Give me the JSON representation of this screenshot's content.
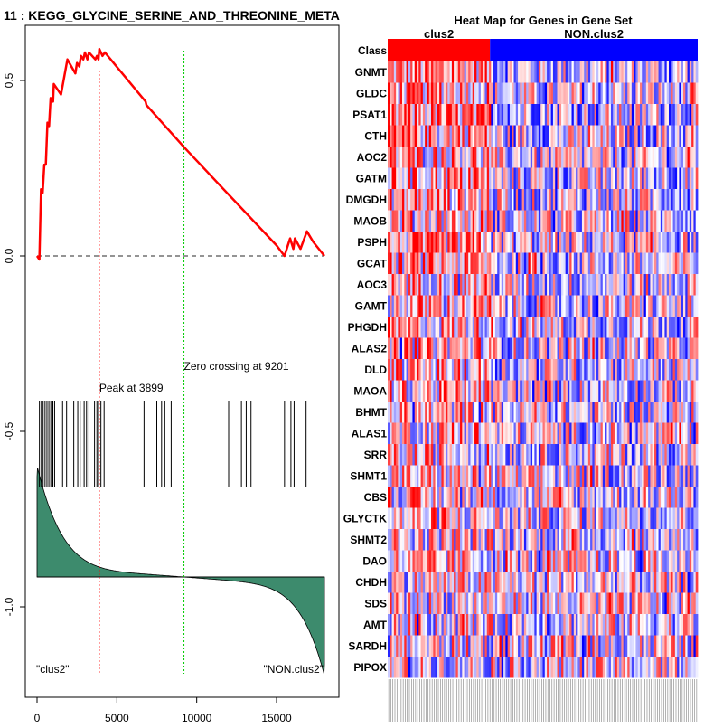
{
  "page_title": "11 : KEGG_GLYCINE_SERINE_AND_THREONINE_META",
  "chart_data": [
    {
      "type": "line",
      "name": "GSEA enrichment plot",
      "x_range": [
        0,
        18000
      ],
      "y_range": [
        -1.25,
        0.65
      ],
      "x_ticks": [
        0,
        5000,
        10000,
        15000
      ],
      "x_tick_labels": [
        "0",
        "5000",
        "10000",
        "15000"
      ],
      "y_ticks": [
        0.5,
        0.0,
        -0.5,
        -1.0
      ],
      "y_tick_labels": [
        "0.5",
        "0.0",
        "-0.5",
        "-1.0"
      ],
      "running_es": [
        [
          0,
          0
        ],
        [
          150,
          -0.01
        ],
        [
          250,
          0.19
        ],
        [
          350,
          0.18
        ],
        [
          450,
          0.26
        ],
        [
          550,
          0.26
        ],
        [
          650,
          0.38
        ],
        [
          750,
          0.37
        ],
        [
          850,
          0.45
        ],
        [
          1000,
          0.44
        ],
        [
          1050,
          0.49
        ],
        [
          1500,
          0.46
        ],
        [
          1900,
          0.56
        ],
        [
          2400,
          0.52
        ],
        [
          2500,
          0.55
        ],
        [
          2650,
          0.54
        ],
        [
          2750,
          0.57
        ],
        [
          2900,
          0.56
        ],
        [
          3000,
          0.58
        ],
        [
          3150,
          0.56
        ],
        [
          3250,
          0.58
        ],
        [
          3650,
          0.56
        ],
        [
          3750,
          0.57
        ],
        [
          3850,
          0.56
        ],
        [
          3900,
          0.59
        ],
        [
          4100,
          0.57
        ],
        [
          4250,
          0.58
        ],
        [
          6800,
          0.44
        ],
        [
          6850,
          0.43
        ],
        [
          9201,
          0.31
        ],
        [
          15000,
          0.03
        ],
        [
          15500,
          0.0
        ],
        [
          15850,
          0.05
        ],
        [
          16050,
          0.02
        ],
        [
          16150,
          0.05
        ],
        [
          16500,
          0.02
        ],
        [
          16900,
          0.07
        ],
        [
          17300,
          0.04
        ],
        [
          18000,
          0.0
        ]
      ],
      "hit_positions": [
        150,
        270,
        380,
        500,
        620,
        740,
        860,
        990,
        1100,
        1600,
        1850,
        2300,
        2550,
        2700,
        2950,
        3100,
        3250,
        3600,
        3750,
        3850,
        4000,
        4200,
        6700,
        7500,
        7800,
        8000,
        8400,
        12000,
        12800,
        13100,
        13400,
        15500,
        15900,
        16100,
        16850
      ],
      "peak_position": 3899,
      "peak_label": "Peak at 3899",
      "zero_crossing": 9201,
      "zero_crossing_label": "Zero crossing at 9201",
      "left_label": "\"clus2\"",
      "right_label": "\"NON.clus2\"",
      "colors": {
        "es_line": "#ff0000",
        "zero_line": "#555555",
        "peak_line": "#ff0000",
        "crossing_line": "#00cc00",
        "ranked_fill": "#3d8b6d",
        "hits": "#000000"
      }
    },
    {
      "type": "heatmap",
      "title": "Heat Map for Genes in Gene Set",
      "row_header": "Class",
      "groups": [
        {
          "label": "clus2",
          "fraction": 0.33,
          "color": "#ff0000"
        },
        {
          "label": "NON.clus2",
          "fraction": 0.67,
          "color": "#0000ff"
        }
      ],
      "genes": [
        "GNMT",
        "GLDC",
        "PSAT1",
        "CTH",
        "AOC2",
        "GATM",
        "DMGDH",
        "MAOB",
        "PSPH",
        "GCAT",
        "AOC3",
        "GAMT",
        "PHGDH",
        "ALAS2",
        "DLD",
        "MAOA",
        "BHMT",
        "ALAS1",
        "SRR",
        "SHMT1",
        "CBS",
        "GLYCTK",
        "SHMT2",
        "DAO",
        "CHDH",
        "SDS",
        "AMT",
        "SARDH",
        "PIPOX"
      ],
      "sample_columns": 150,
      "color_scale": {
        "low": "#0000ff",
        "mid": "#ffffff",
        "high": "#ff0000"
      }
    }
  ]
}
